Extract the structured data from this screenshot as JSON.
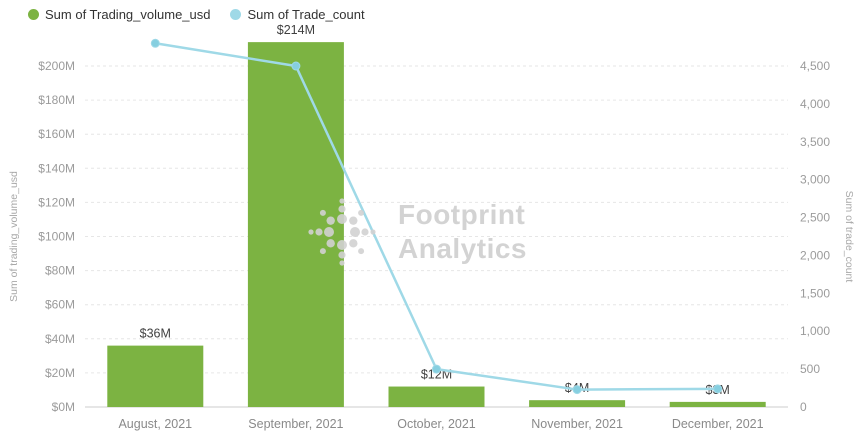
{
  "legend": {
    "items": [
      {
        "label": "Sum of Trading_volume_usd",
        "color": "#7cb342"
      },
      {
        "label": "Sum of Trade_count",
        "color": "#9fd9e7"
      }
    ]
  },
  "watermark": {
    "line1": "Footprint",
    "line2": "Analytics"
  },
  "colors": {
    "bar": "#7cb342",
    "line": "#9fd9e7",
    "marker": "#86cfe0",
    "grid": "#e6e6e6",
    "axis_line": "#cccccc",
    "axis_text": "#9b9b9b",
    "axis_title": "#a8a8a8",
    "category_text": "#8a8a8a",
    "label_text": "#3f3f3f",
    "watermark_logo": "#d2d2d2"
  },
  "chart_data": {
    "type": "combo",
    "categories": [
      "August, 2021",
      "September, 2021",
      "October, 2021",
      "November, 2021",
      "December, 2021"
    ],
    "series": [
      {
        "name": "Sum of Trading_volume_usd",
        "chart": "bar",
        "axis": "left",
        "unit": "USD millions",
        "color": "#7cb342",
        "values": [
          36,
          214,
          12,
          4,
          3
        ],
        "labels": [
          "$36M",
          "$214M",
          "$12M",
          "$4M",
          "$3M"
        ]
      },
      {
        "name": "Sum of Trade_count",
        "chart": "line",
        "axis": "right",
        "color": "#9fd9e7",
        "values": [
          4800,
          4500,
          500,
          230,
          240
        ]
      }
    ],
    "left_axis": {
      "title": "Sum of trading_volume_usd",
      "min": 0,
      "max": 200,
      "step": 20,
      "ticks": [
        "$0M",
        "$20M",
        "$40M",
        "$60M",
        "$80M",
        "$100M",
        "$120M",
        "$140M",
        "$160M",
        "$180M",
        "$200M"
      ]
    },
    "right_axis": {
      "title": "Sum of trade_count",
      "min": 0,
      "max": 4500,
      "step": 500,
      "ticks": [
        "0",
        "500",
        "1,000",
        "1,500",
        "2,000",
        "2,500",
        "3,000",
        "3,500",
        "4,000",
        "4,500"
      ]
    },
    "grid": true,
    "legend_position": "top-left",
    "title": ""
  }
}
